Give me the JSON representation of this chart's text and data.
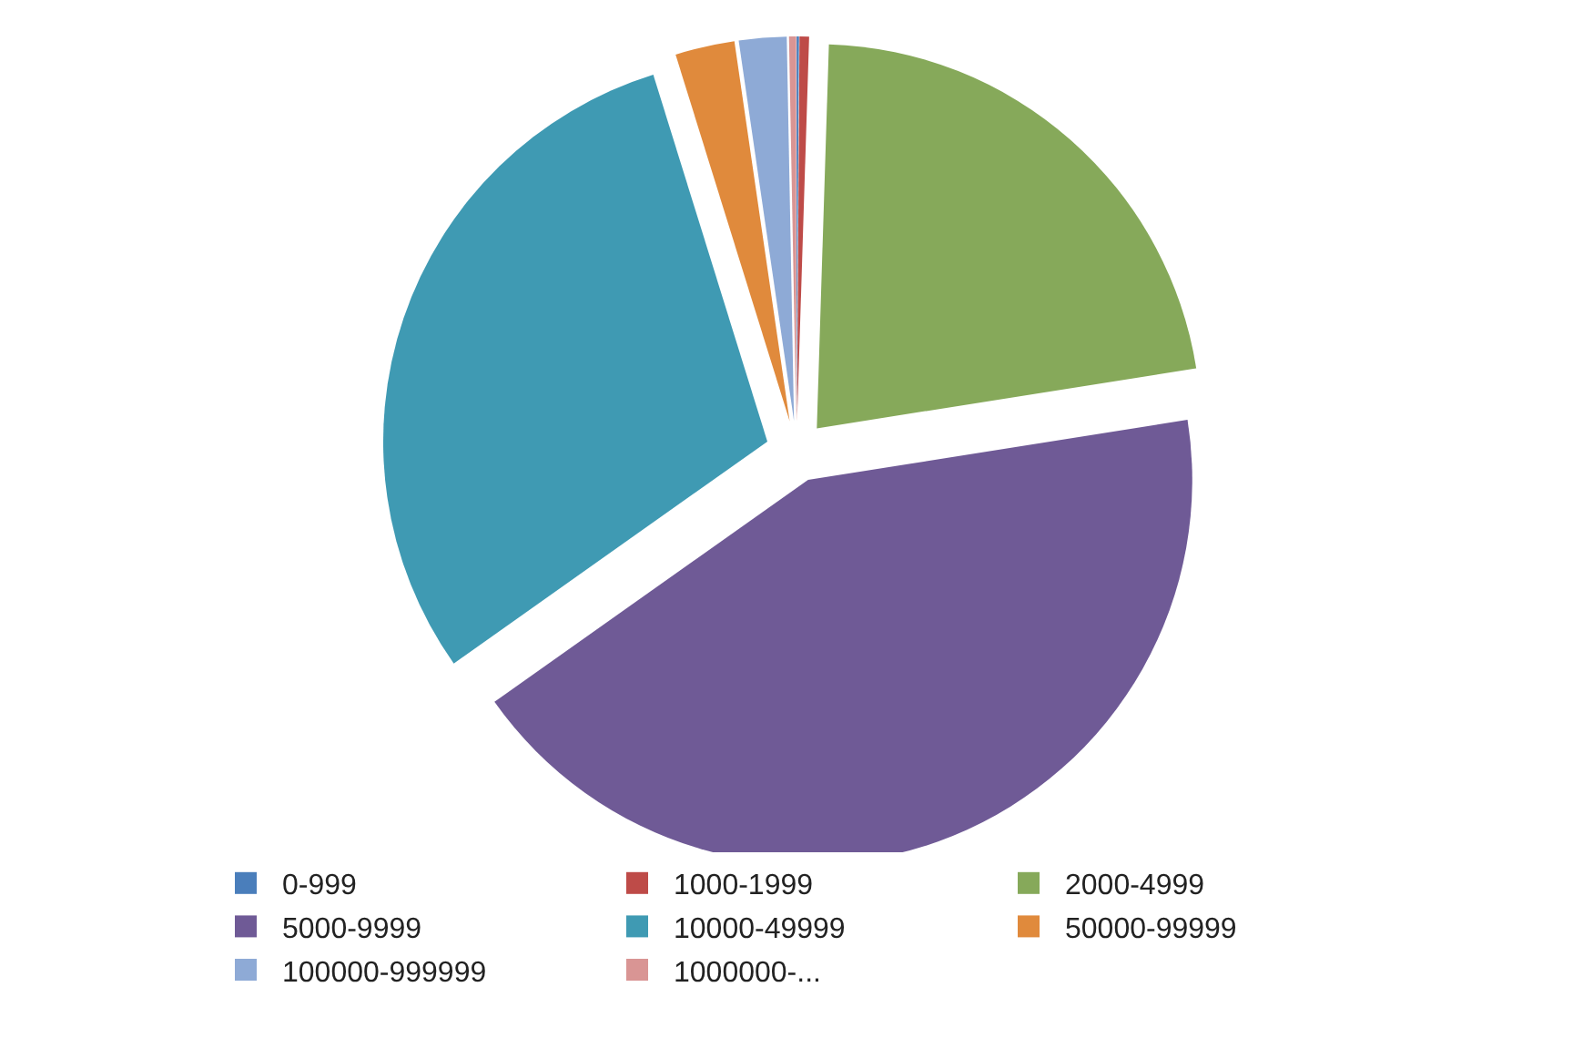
{
  "chart_data": {
    "type": "pie",
    "categories": [
      "0-999",
      "1000-1999",
      "2000-4999",
      "5000-9999",
      "10000-49999",
      "50000-99999",
      "100000-999999",
      "1000000-..."
    ],
    "values": [
      0.1,
      0.4,
      22,
      42.7,
      30,
      2.5,
      2,
      0.3
    ],
    "colors": [
      "#4a7ebb",
      "#be4b48",
      "#86a95a",
      "#6f5a96",
      "#3f9ab3",
      "#e08a3c",
      "#8eaad6",
      "#d99594"
    ],
    "legend": "bottom"
  }
}
